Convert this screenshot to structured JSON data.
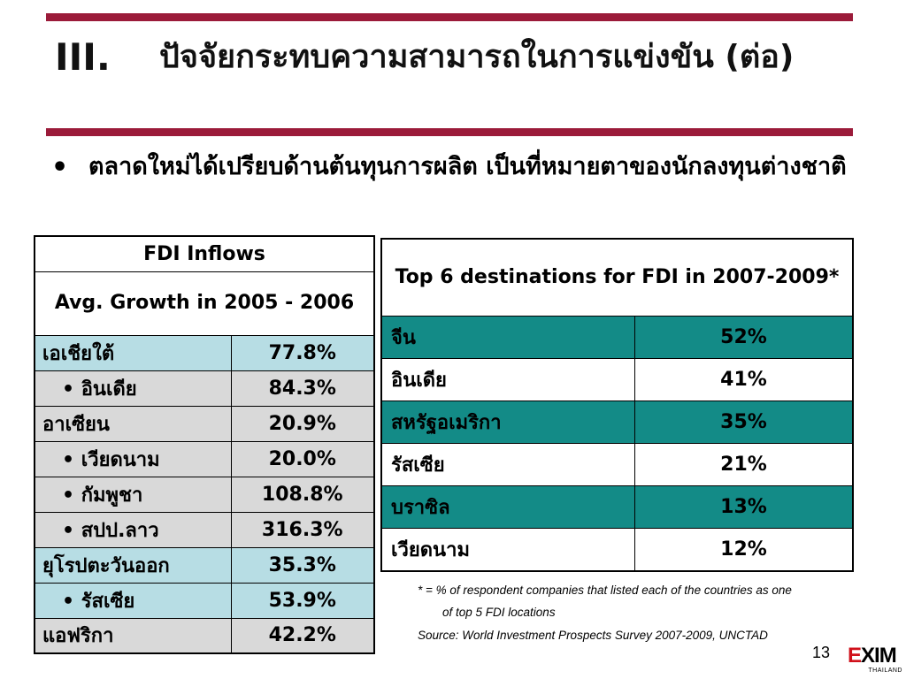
{
  "title": {
    "number": "III.",
    "text": "ปัจจัยกระทบความสามารถในการแข่งขัน (ต่อ)"
  },
  "bullet": {
    "symbol": "•",
    "text": "ตลาดใหม่ได้เปรียบด้านต้นทุนการผลิต เป็นที่หมายตาของนักลงทุนต่างชาติ"
  },
  "fdi_table": {
    "header1": "FDI Inflows",
    "header2": "Avg. Growth in 2005 - 2006",
    "rows": [
      {
        "label": "เอเชียใต้",
        "value": "77.8%",
        "indent": false,
        "shade": "blue"
      },
      {
        "label": "• อินเดีย",
        "value": "84.3%",
        "indent": true,
        "shade": "grey"
      },
      {
        "label": "อาเซียน",
        "value": "20.9%",
        "indent": false,
        "shade": "grey"
      },
      {
        "label": "• เวียดนาม",
        "value": "20.0%",
        "indent": true,
        "shade": "grey"
      },
      {
        "label": "• กัมพูชา",
        "value": "108.8%",
        "indent": true,
        "shade": "grey"
      },
      {
        "label": "• สปป.ลาว",
        "value": "316.3%",
        "indent": true,
        "shade": "grey"
      },
      {
        "label": "ยุโรปตะวันออก",
        "value": "35.3%",
        "indent": false,
        "shade": "blue"
      },
      {
        "label": "• รัสเซีย",
        "value": "53.9%",
        "indent": true,
        "shade": "blue"
      },
      {
        "label": "แอฟริกา",
        "value": "42.2%",
        "indent": false,
        "shade": "grey"
      }
    ]
  },
  "top6_table": {
    "header": "Top 6 destinations for FDI in 2007-2009*",
    "rows": [
      {
        "label": "จีน",
        "value": "52%",
        "shade": "teal"
      },
      {
        "label": "อินเดีย",
        "value": "41%",
        "shade": "white"
      },
      {
        "label": "สหรัฐอเมริกา",
        "value": "35%",
        "shade": "teal"
      },
      {
        "label": "รัสเซีย",
        "value": "21%",
        "shade": "white"
      },
      {
        "label": "บราซิล",
        "value": "13%",
        "shade": "teal"
      },
      {
        "label": "เวียดนาม",
        "value": "12%",
        "shade": "white"
      }
    ]
  },
  "notes": {
    "footnote_line1": "*  = % of respondent companies that listed each of the countries as one",
    "footnote_line2": "of top 5 FDI locations",
    "source": "Source: World Investment Prospects Survey 2007-2009, UNCTAD"
  },
  "page_number": "13",
  "logo": {
    "word_first": "E",
    "word_rest": "XIM",
    "sub": "THAILAND"
  },
  "colors": {
    "rule": "#9b1b3a",
    "teal": "#138b87",
    "light_blue": "#b7dde4",
    "grey": "#d9d9d9",
    "logo_red": "#d0101a"
  }
}
